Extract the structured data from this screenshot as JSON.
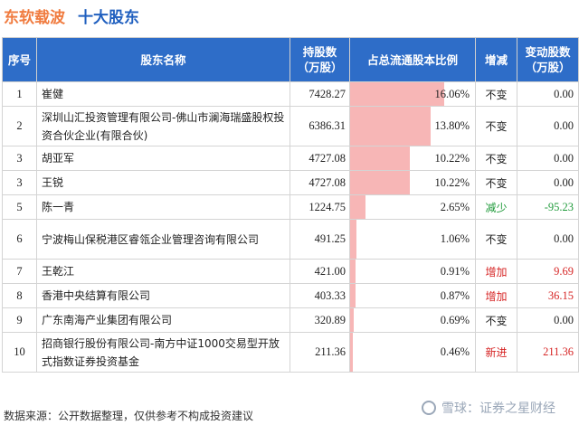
{
  "title": {
    "company": "东软载波",
    "subtitle": "十大股东"
  },
  "table": {
    "headers": {
      "idx": "序号",
      "name": "股东名称",
      "hold_line1": "持股数",
      "hold_line2": "（万股）",
      "ratio": "占总流通股本比例",
      "change": "增减",
      "var_line1": "变动股数",
      "var_line2": "（万股）"
    },
    "rows": [
      {
        "idx": "1",
        "name": "崔健",
        "holding": "7428.27",
        "ratio_label": "16.06%",
        "ratio_value": 16.06,
        "change": "不变",
        "change_type": "same",
        "variation": "0.00",
        "two_line": false
      },
      {
        "idx": "2",
        "name": "深圳山汇投资管理有限公司-佛山市澜海瑞盛股权投资合伙企业(有限合伙)",
        "holding": "6386.31",
        "ratio_label": "13.80%",
        "ratio_value": 13.8,
        "change": "不变",
        "change_type": "same",
        "variation": "0.00",
        "two_line": true
      },
      {
        "idx": "3",
        "name": "胡亚军",
        "holding": "4727.08",
        "ratio_label": "10.22%",
        "ratio_value": 10.22,
        "change": "不变",
        "change_type": "same",
        "variation": "0.00",
        "two_line": false
      },
      {
        "idx": "3",
        "name": "王锐",
        "holding": "4727.08",
        "ratio_label": "10.22%",
        "ratio_value": 10.22,
        "change": "不变",
        "change_type": "same",
        "variation": "0.00",
        "two_line": false
      },
      {
        "idx": "5",
        "name": "陈一青",
        "holding": "1224.75",
        "ratio_label": "2.65%",
        "ratio_value": 2.65,
        "change": "减少",
        "change_type": "down",
        "variation": "-95.23",
        "two_line": false
      },
      {
        "idx": "6",
        "name": "宁波梅山保税港区睿瓴企业管理咨询有限公司",
        "holding": "491.25",
        "ratio_label": "1.06%",
        "ratio_value": 1.06,
        "change": "不变",
        "change_type": "same",
        "variation": "0.00",
        "two_line": true
      },
      {
        "idx": "7",
        "name": "王乾江",
        "holding": "421.00",
        "ratio_label": "0.91%",
        "ratio_value": 0.91,
        "change": "增加",
        "change_type": "up",
        "variation": "9.69",
        "two_line": false
      },
      {
        "idx": "8",
        "name": "香港中央结算有限公司",
        "holding": "403.33",
        "ratio_label": "0.87%",
        "ratio_value": 0.87,
        "change": "增加",
        "change_type": "up",
        "variation": "36.15",
        "two_line": false
      },
      {
        "idx": "9",
        "name": "广东南海产业集团有限公司",
        "holding": "320.89",
        "ratio_label": "0.69%",
        "ratio_value": 0.69,
        "change": "不变",
        "change_type": "same",
        "variation": "0.00",
        "two_line": false
      },
      {
        "idx": "10",
        "name": "招商银行股份有限公司-南方中证1000交易型开放式指数证券投资基金",
        "holding": "211.36",
        "ratio_label": "0.46%",
        "ratio_value": 0.46,
        "change": "新进",
        "change_type": "up",
        "variation": "211.36",
        "two_line": true
      }
    ]
  },
  "footer": {
    "source": "数据来源：公开数据整理，仅供参考不构成投资建议"
  },
  "watermark": {
    "text": "雪球：证券之星财经"
  },
  "colors": {
    "header_bg": "#2e6dc8",
    "ratio_bar": "#f7b6b6",
    "increase": "#d62424",
    "decrease": "#1f9a3a",
    "title_company": "#f07b3f",
    "title_sub": "#1f5fbf"
  }
}
